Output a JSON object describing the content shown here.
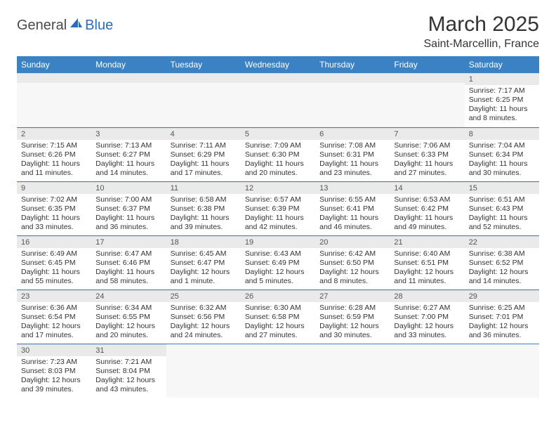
{
  "logo": {
    "text1": "General",
    "text2": "Blue"
  },
  "header": {
    "monthTitle": "March 2025",
    "location": "Saint-Marcellin, France"
  },
  "colors": {
    "headerBar": "#3b82c4",
    "dayNumBg": "#eaeaea",
    "rowBorder": "#3b82c4",
    "logoBlue": "#2a6eb8"
  },
  "weekdays": [
    "Sunday",
    "Monday",
    "Tuesday",
    "Wednesday",
    "Thursday",
    "Friday",
    "Saturday"
  ],
  "days": {
    "1": {
      "sunrise": "7:17 AM",
      "sunset": "6:25 PM",
      "daylight": "11 hours and 8 minutes."
    },
    "2": {
      "sunrise": "7:15 AM",
      "sunset": "6:26 PM",
      "daylight": "11 hours and 11 minutes."
    },
    "3": {
      "sunrise": "7:13 AM",
      "sunset": "6:27 PM",
      "daylight": "11 hours and 14 minutes."
    },
    "4": {
      "sunrise": "7:11 AM",
      "sunset": "6:29 PM",
      "daylight": "11 hours and 17 minutes."
    },
    "5": {
      "sunrise": "7:09 AM",
      "sunset": "6:30 PM",
      "daylight": "11 hours and 20 minutes."
    },
    "6": {
      "sunrise": "7:08 AM",
      "sunset": "6:31 PM",
      "daylight": "11 hours and 23 minutes."
    },
    "7": {
      "sunrise": "7:06 AM",
      "sunset": "6:33 PM",
      "daylight": "11 hours and 27 minutes."
    },
    "8": {
      "sunrise": "7:04 AM",
      "sunset": "6:34 PM",
      "daylight": "11 hours and 30 minutes."
    },
    "9": {
      "sunrise": "7:02 AM",
      "sunset": "6:35 PM",
      "daylight": "11 hours and 33 minutes."
    },
    "10": {
      "sunrise": "7:00 AM",
      "sunset": "6:37 PM",
      "daylight": "11 hours and 36 minutes."
    },
    "11": {
      "sunrise": "6:58 AM",
      "sunset": "6:38 PM",
      "daylight": "11 hours and 39 minutes."
    },
    "12": {
      "sunrise": "6:57 AM",
      "sunset": "6:39 PM",
      "daylight": "11 hours and 42 minutes."
    },
    "13": {
      "sunrise": "6:55 AM",
      "sunset": "6:41 PM",
      "daylight": "11 hours and 46 minutes."
    },
    "14": {
      "sunrise": "6:53 AM",
      "sunset": "6:42 PM",
      "daylight": "11 hours and 49 minutes."
    },
    "15": {
      "sunrise": "6:51 AM",
      "sunset": "6:43 PM",
      "daylight": "11 hours and 52 minutes."
    },
    "16": {
      "sunrise": "6:49 AM",
      "sunset": "6:45 PM",
      "daylight": "11 hours and 55 minutes."
    },
    "17": {
      "sunrise": "6:47 AM",
      "sunset": "6:46 PM",
      "daylight": "11 hours and 58 minutes."
    },
    "18": {
      "sunrise": "6:45 AM",
      "sunset": "6:47 PM",
      "daylight": "12 hours and 1 minute."
    },
    "19": {
      "sunrise": "6:43 AM",
      "sunset": "6:49 PM",
      "daylight": "12 hours and 5 minutes."
    },
    "20": {
      "sunrise": "6:42 AM",
      "sunset": "6:50 PM",
      "daylight": "12 hours and 8 minutes."
    },
    "21": {
      "sunrise": "6:40 AM",
      "sunset": "6:51 PM",
      "daylight": "12 hours and 11 minutes."
    },
    "22": {
      "sunrise": "6:38 AM",
      "sunset": "6:52 PM",
      "daylight": "12 hours and 14 minutes."
    },
    "23": {
      "sunrise": "6:36 AM",
      "sunset": "6:54 PM",
      "daylight": "12 hours and 17 minutes."
    },
    "24": {
      "sunrise": "6:34 AM",
      "sunset": "6:55 PM",
      "daylight": "12 hours and 20 minutes."
    },
    "25": {
      "sunrise": "6:32 AM",
      "sunset": "6:56 PM",
      "daylight": "12 hours and 24 minutes."
    },
    "26": {
      "sunrise": "6:30 AM",
      "sunset": "6:58 PM",
      "daylight": "12 hours and 27 minutes."
    },
    "27": {
      "sunrise": "6:28 AM",
      "sunset": "6:59 PM",
      "daylight": "12 hours and 30 minutes."
    },
    "28": {
      "sunrise": "6:27 AM",
      "sunset": "7:00 PM",
      "daylight": "12 hours and 33 minutes."
    },
    "29": {
      "sunrise": "6:25 AM",
      "sunset": "7:01 PM",
      "daylight": "12 hours and 36 minutes."
    },
    "30": {
      "sunrise": "7:23 AM",
      "sunset": "8:03 PM",
      "daylight": "12 hours and 39 minutes."
    },
    "31": {
      "sunrise": "7:21 AM",
      "sunset": "8:04 PM",
      "daylight": "12 hours and 43 minutes."
    }
  },
  "labels": {
    "sunrisePrefix": "Sunrise: ",
    "sunsetPrefix": "Sunset: ",
    "daylightPrefix": "Daylight: "
  },
  "layout": {
    "weeks": [
      [
        null,
        null,
        null,
        null,
        null,
        null,
        "1"
      ],
      [
        "2",
        "3",
        "4",
        "5",
        "6",
        "7",
        "8"
      ],
      [
        "9",
        "10",
        "11",
        "12",
        "13",
        "14",
        "15"
      ],
      [
        "16",
        "17",
        "18",
        "19",
        "20",
        "21",
        "22"
      ],
      [
        "23",
        "24",
        "25",
        "26",
        "27",
        "28",
        "29"
      ],
      [
        "30",
        "31",
        null,
        null,
        null,
        null,
        null
      ]
    ]
  }
}
